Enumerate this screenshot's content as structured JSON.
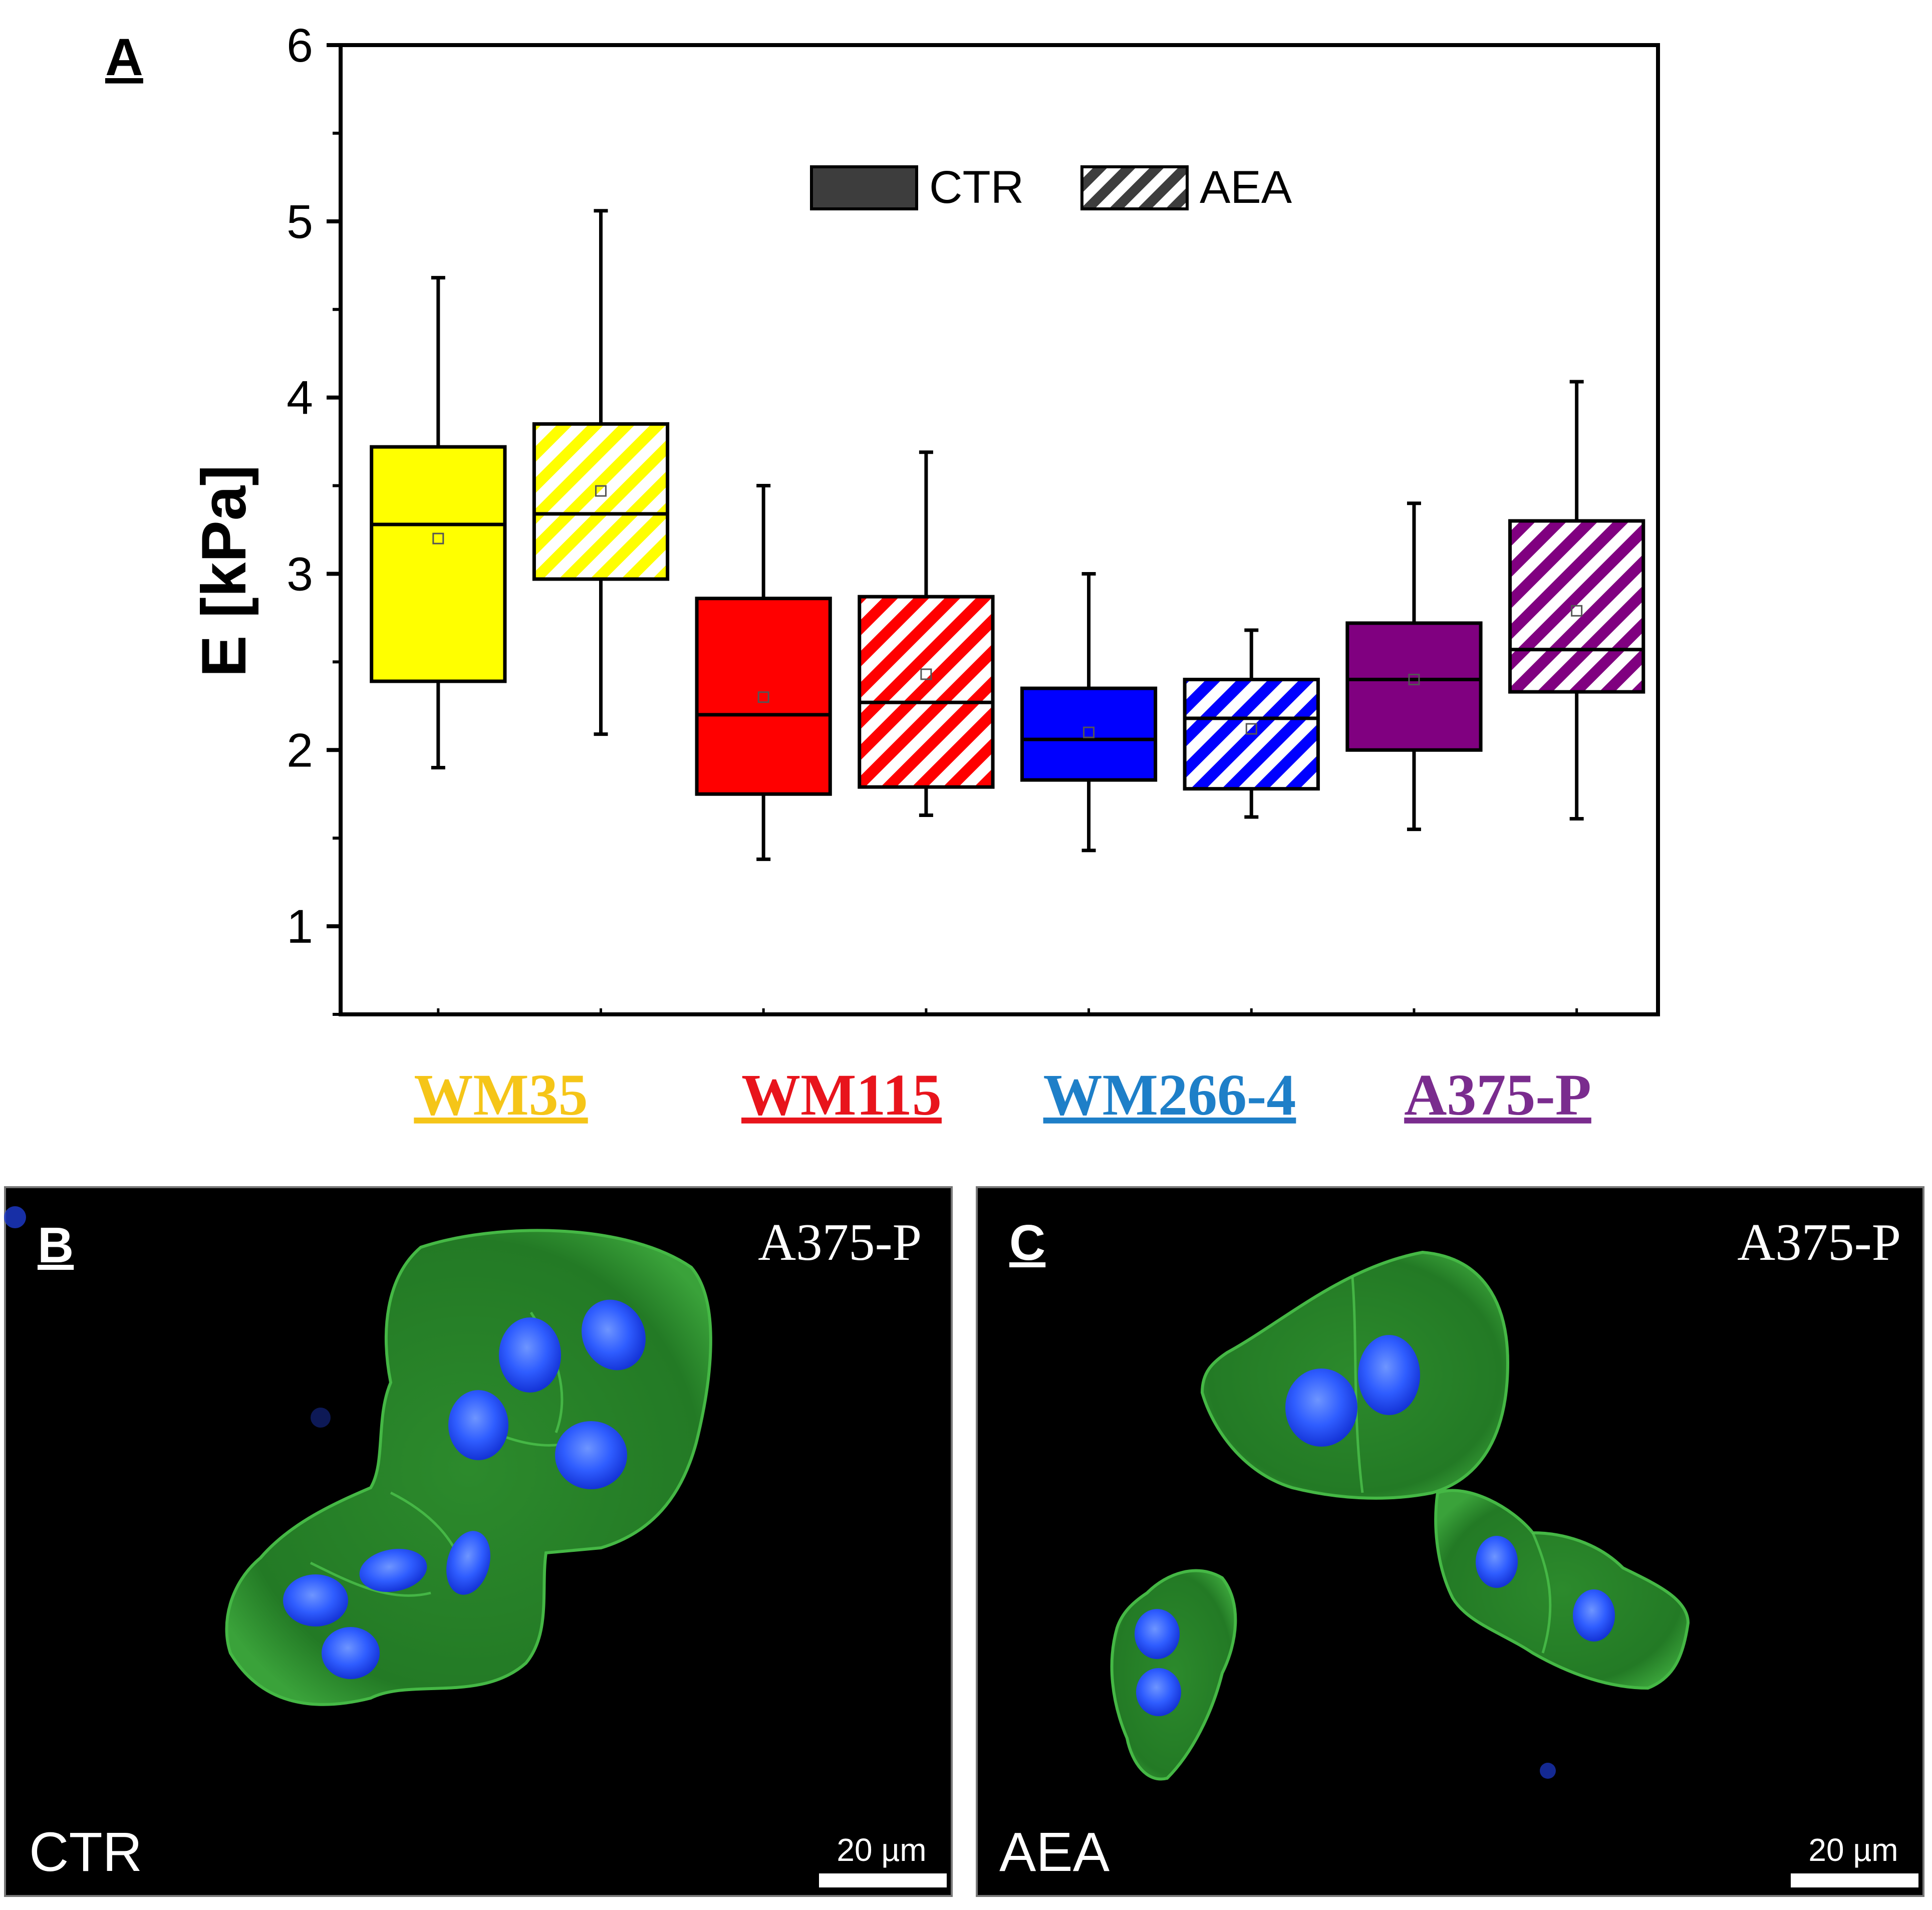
{
  "panels": {
    "a_label": "A",
    "b_label": "B",
    "c_label": "C"
  },
  "chart_data": {
    "type": "box",
    "ylabel": "E [kPa]",
    "ylim": [
      0.5,
      6
    ],
    "yticks": [
      "1",
      "2",
      "3",
      "4",
      "5",
      "6"
    ],
    "legend": {
      "position": "top-center",
      "entries": [
        {
          "name": "CTR",
          "fill": "solid"
        },
        {
          "name": "AEA",
          "fill": "hatched"
        }
      ]
    },
    "groups": [
      {
        "name": "WM35",
        "color": "#F5C518",
        "fill": "#FFFF00"
      },
      {
        "name": "WM115",
        "color": "#E8141C",
        "fill": "#FF0000"
      },
      {
        "name": "WM266-4",
        "color": "#1E7FC8",
        "fill": "#0000FF"
      },
      {
        "name": "A375-P",
        "color": "#7A2C8E",
        "fill": "#800080"
      }
    ],
    "boxes": [
      {
        "group": "WM35",
        "condition": "CTR",
        "whisker_low": 1.9,
        "q1": 2.39,
        "median": 3.28,
        "mean": 3.2,
        "q3": 3.72,
        "whisker_high": 4.68
      },
      {
        "group": "WM35",
        "condition": "AEA",
        "whisker_low": 2.09,
        "q1": 2.97,
        "median": 3.34,
        "mean": 3.47,
        "q3": 3.85,
        "whisker_high": 5.06
      },
      {
        "group": "WM115",
        "condition": "CTR",
        "whisker_low": 1.38,
        "q1": 1.75,
        "median": 2.2,
        "mean": 2.3,
        "q3": 2.86,
        "whisker_high": 3.5
      },
      {
        "group": "WM115",
        "condition": "AEA",
        "whisker_low": 1.63,
        "q1": 1.79,
        "median": 2.27,
        "mean": 2.43,
        "q3": 2.87,
        "whisker_high": 3.69
      },
      {
        "group": "WM266-4",
        "condition": "CTR",
        "whisker_low": 1.43,
        "q1": 1.83,
        "median": 2.06,
        "mean": 2.1,
        "q3": 2.35,
        "whisker_high": 3.0
      },
      {
        "group": "WM266-4",
        "condition": "AEA",
        "whisker_low": 1.62,
        "q1": 1.78,
        "median": 2.18,
        "mean": 2.12,
        "q3": 2.4,
        "whisker_high": 2.68
      },
      {
        "group": "A375-P",
        "condition": "CTR",
        "whisker_low": 1.55,
        "q1": 2.0,
        "median": 2.4,
        "mean": 2.4,
        "q3": 2.72,
        "whisker_high": 3.4
      },
      {
        "group": "A375-P",
        "condition": "AEA",
        "whisker_low": 1.61,
        "q1": 2.33,
        "median": 2.57,
        "mean": 2.79,
        "q3": 3.3,
        "whisker_high": 4.09
      }
    ]
  },
  "micrographs": [
    {
      "cell_line": "A375-P",
      "condition": "CTR",
      "scale_bar": "20 µm"
    },
    {
      "cell_line": "A375-P",
      "condition": "AEA",
      "scale_bar": "20 µm"
    }
  ],
  "colors": {
    "cytoskeleton": "#2e9a2e",
    "nucleus": "#1f4dff",
    "background": "#000000"
  }
}
